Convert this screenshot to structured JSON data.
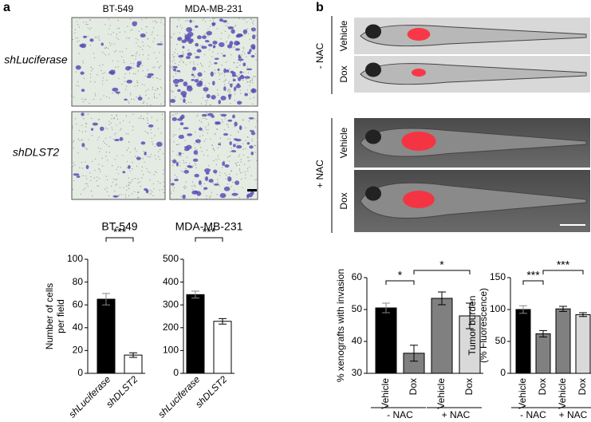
{
  "panels": {
    "a": {
      "letter": "a",
      "columns": [
        "BT-549",
        "MDA-MB-231"
      ],
      "rows": [
        "shLuciferase",
        "shDLST2"
      ]
    },
    "b": {
      "letter": "b",
      "groups": [
        "- NAC",
        "+ NAC"
      ],
      "rows": [
        "Vehicle",
        "Dox",
        "Vehicle",
        "Dox"
      ]
    }
  },
  "chart_data": [
    {
      "type": "bar",
      "title": "BT-549",
      "ylabel": [
        "Number of cells",
        "per field"
      ],
      "categories": [
        "shLuciferase",
        "shDLST2"
      ],
      "values": [
        65,
        16
      ],
      "errors": [
        5,
        2
      ],
      "colors": [
        "#000000",
        "#ffffff"
      ],
      "ylim": [
        0,
        100
      ],
      "yticks": [
        0,
        20,
        40,
        60,
        80,
        100
      ],
      "significance": [
        {
          "label": "***",
          "between": [
            0,
            1
          ]
        }
      ]
    },
    {
      "type": "bar",
      "title": "MDA-MB-231",
      "categories": [
        "shLuciferase",
        "shDLST2"
      ],
      "values": [
        345,
        228
      ],
      "errors": [
        15,
        12
      ],
      "colors": [
        "#000000",
        "#ffffff"
      ],
      "ylim": [
        0,
        500
      ],
      "yticks": [
        0,
        100,
        200,
        300,
        400,
        500
      ],
      "significance": [
        {
          "label": "***",
          "between": [
            0,
            1
          ]
        }
      ]
    },
    {
      "type": "bar",
      "ylabel": [
        "% xenografts with invasion"
      ],
      "categories": [
        "Vehicle",
        "Dox",
        "Vehicle",
        "Dox"
      ],
      "values": [
        50.5,
        36.3,
        53.5,
        48
      ],
      "errors": [
        1.5,
        2.5,
        2,
        4
      ],
      "colors": [
        "#000000",
        "#808080",
        "#808080",
        "#d9d9d9"
      ],
      "ylim": [
        30,
        60
      ],
      "yticks": [
        30,
        40,
        50,
        60
      ],
      "groups": [
        {
          "label": "- NAC",
          "span": [
            0,
            1
          ]
        },
        {
          "label": "+ NAC",
          "span": [
            2,
            3
          ]
        }
      ],
      "significance": [
        {
          "label": "*",
          "between": [
            0,
            1
          ]
        },
        {
          "label": "*",
          "between": [
            1,
            3
          ]
        }
      ]
    },
    {
      "type": "bar",
      "ylabel": [
        "Tumor burden",
        "(% Fluorescence)"
      ],
      "categories": [
        "Vehicle",
        "Dox",
        "Vehicle",
        "Dox"
      ],
      "values": [
        100,
        62,
        101,
        92
      ],
      "errors": [
        6,
        5,
        4,
        3
      ],
      "colors": [
        "#000000",
        "#808080",
        "#808080",
        "#d9d9d9"
      ],
      "ylim": [
        0,
        150
      ],
      "yticks": [
        0,
        50,
        100,
        150
      ],
      "groups": [
        {
          "label": "- NAC",
          "span": [
            0,
            1
          ]
        },
        {
          "label": "+ NAC",
          "span": [
            2,
            3
          ]
        }
      ],
      "significance": [
        {
          "label": "***",
          "between": [
            0,
            1
          ]
        },
        {
          "label": "***",
          "between": [
            1,
            3
          ]
        }
      ]
    }
  ]
}
